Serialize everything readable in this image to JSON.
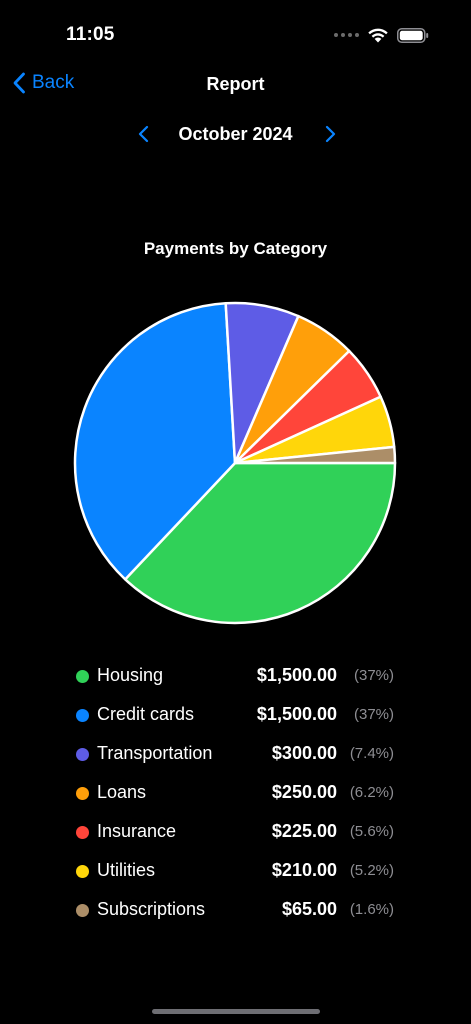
{
  "status_bar": {
    "time": "11:05"
  },
  "nav": {
    "back_label": "Back",
    "title": "Report"
  },
  "period": {
    "label": "October 2024"
  },
  "colors": {
    "accent": "#0a84ff",
    "slice_border": "#ffffff"
  },
  "chart_data": {
    "type": "pie",
    "title": "Payments by Category",
    "legend": "bottom",
    "slices": [
      {
        "name": "Housing",
        "value": 1500.0,
        "amount": "$1,500.00",
        "percent": "(37%)",
        "color": "#30d158"
      },
      {
        "name": "Credit cards",
        "value": 1500.0,
        "amount": "$1,500.00",
        "percent": "(37%)",
        "color": "#0a84ff"
      },
      {
        "name": "Transportation",
        "value": 300.0,
        "amount": "$300.00",
        "percent": "(7.4%)",
        "color": "#5e5ce6"
      },
      {
        "name": "Loans",
        "value": 250.0,
        "amount": "$250.00",
        "percent": "(6.2%)",
        "color": "#ff9f0a"
      },
      {
        "name": "Insurance",
        "value": 225.0,
        "amount": "$225.00",
        "percent": "(5.6%)",
        "color": "#ff453a"
      },
      {
        "name": "Utilities",
        "value": 210.0,
        "amount": "$210.00",
        "percent": "(5.2%)",
        "color": "#ffd60a"
      },
      {
        "name": "Subscriptions",
        "value": 65.0,
        "amount": "$65.00",
        "percent": "(1.6%)",
        "color": "#ac8e68"
      }
    ]
  }
}
